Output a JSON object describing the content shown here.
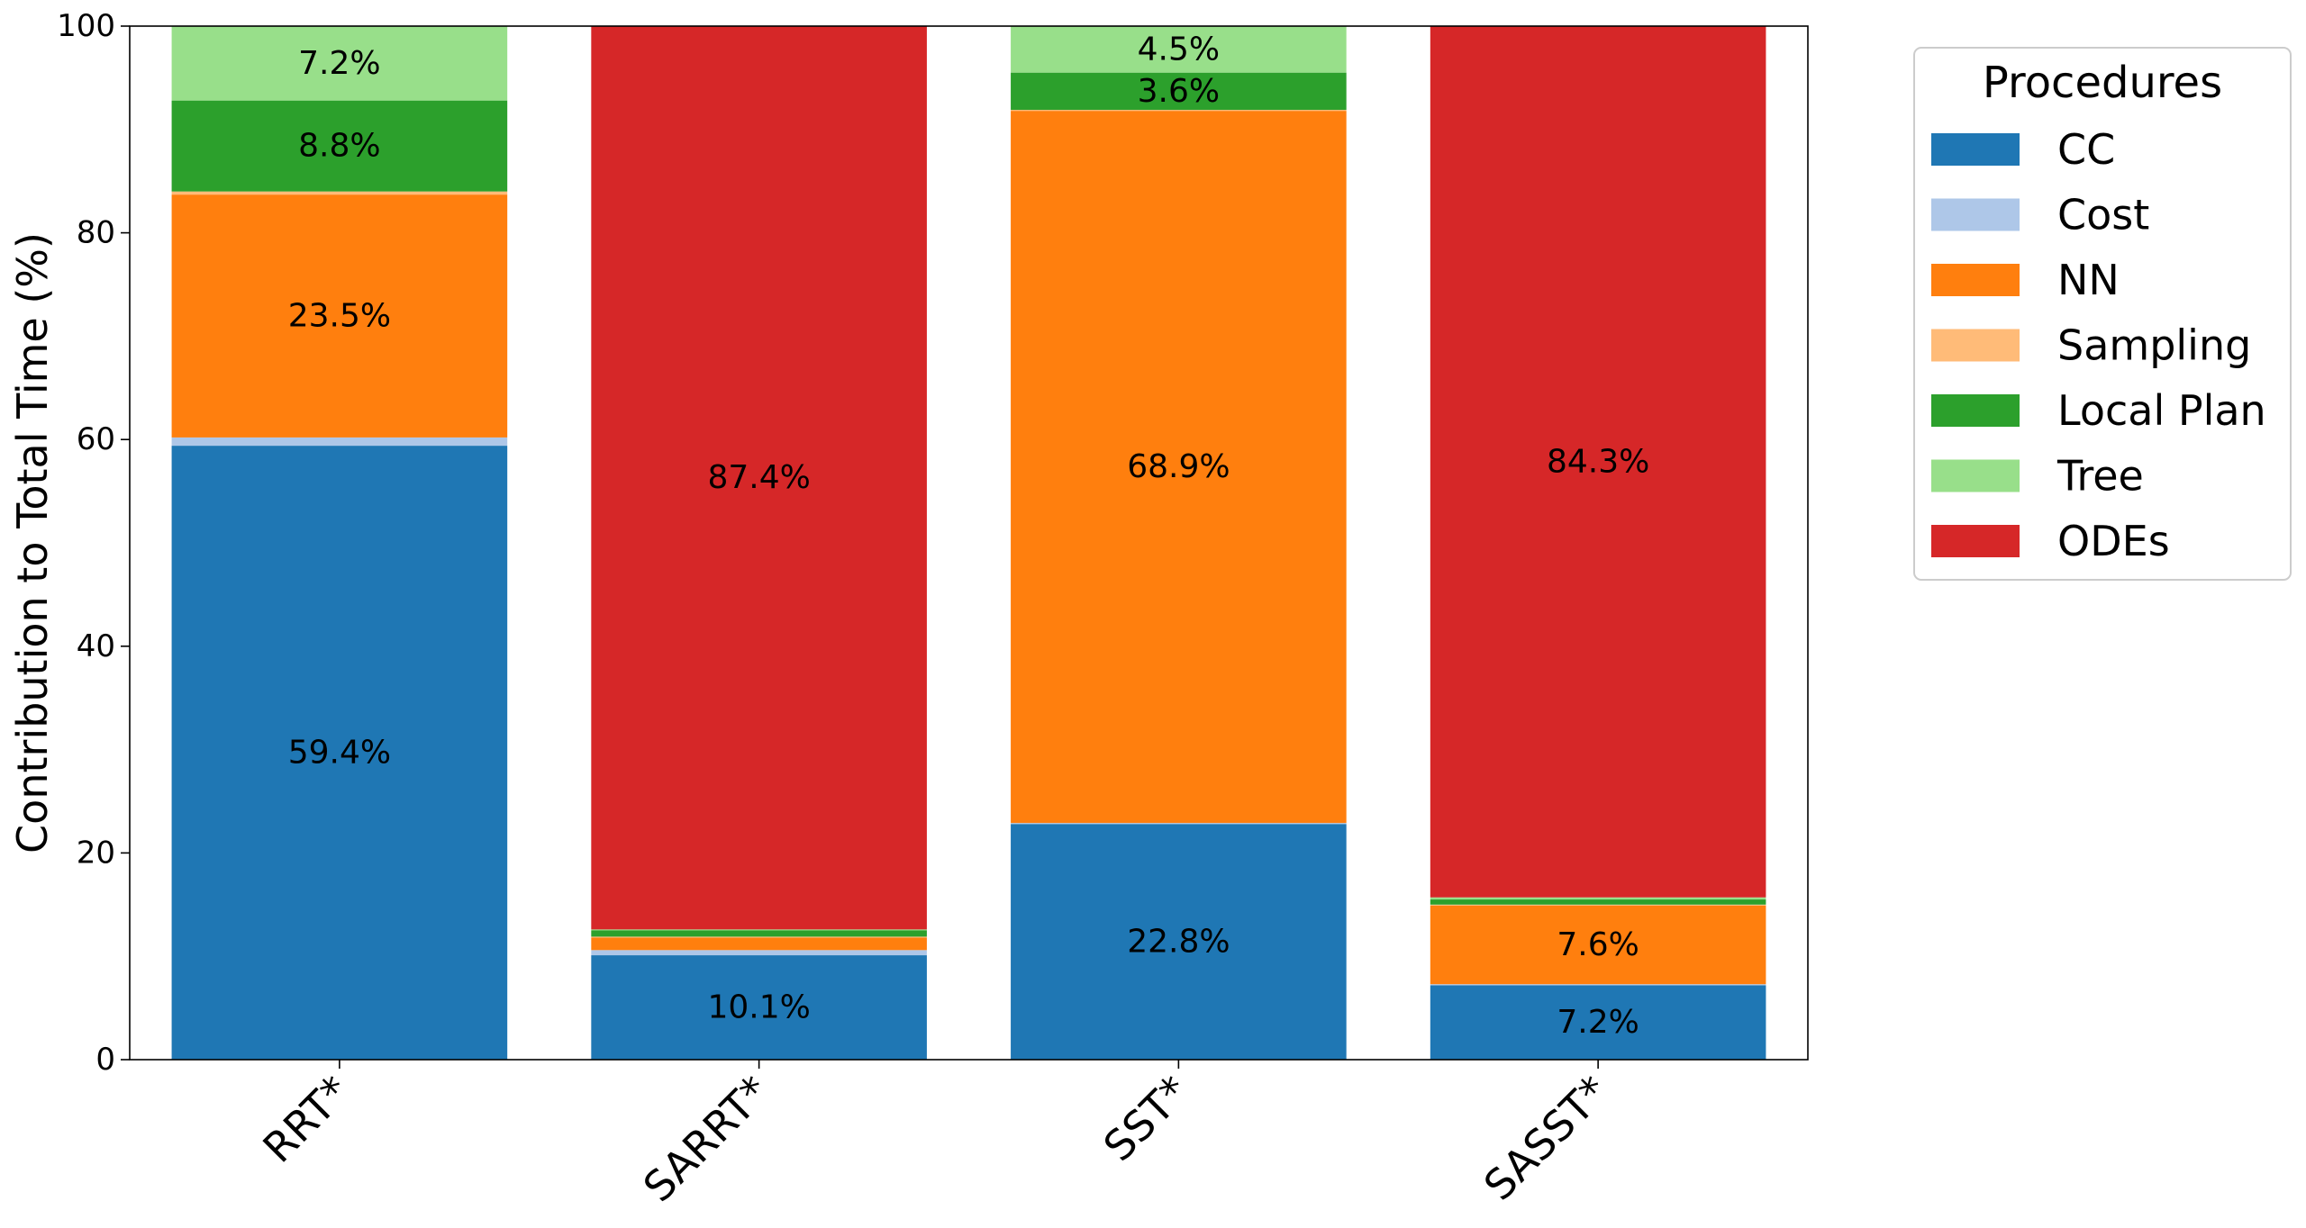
{
  "chart_data": {
    "type": "bar",
    "stacked": true,
    "categories": [
      "RRT*",
      "SARRT*",
      "SST*",
      "SASST*"
    ],
    "ylabel": "Contribution to Total Time (%)",
    "xlabel": "",
    "ylim": [
      0,
      100
    ],
    "yticks": [
      "0",
      "20",
      "40",
      "60",
      "80",
      "100"
    ],
    "grid": false,
    "legend": {
      "title": "Procedures",
      "placement": "outside-top-right"
    },
    "series": [
      {
        "name": "CC",
        "color": "#1f77b4",
        "values": [
          59.4,
          10.1,
          22.8,
          7.2
        ],
        "labels": [
          "59.4%",
          "10.1%",
          "22.8%",
          "7.2%"
        ]
      },
      {
        "name": "Cost",
        "color": "#aec7e8",
        "values": [
          0.8,
          0.5,
          0.1,
          0.1
        ],
        "labels": [
          "",
          "",
          "",
          ""
        ]
      },
      {
        "name": "NN",
        "color": "#ff7f0e",
        "values": [
          23.5,
          1.2,
          68.9,
          7.6
        ],
        "labels": [
          "23.5%",
          "",
          "68.9%",
          "7.6%"
        ]
      },
      {
        "name": "Sampling",
        "color": "#ffbb78",
        "values": [
          0.3,
          0.1,
          0.1,
          0.1
        ],
        "labels": [
          "",
          "",
          "",
          ""
        ]
      },
      {
        "name": "Local Plan",
        "color": "#2ca02c",
        "values": [
          8.8,
          0.6,
          3.6,
          0.5
        ],
        "labels": [
          "8.8%",
          "",
          "3.6%",
          ""
        ]
      },
      {
        "name": "Tree",
        "color": "#98df8a",
        "values": [
          7.2,
          0.1,
          4.5,
          0.2
        ],
        "labels": [
          "7.2%",
          "",
          "4.5%",
          ""
        ]
      },
      {
        "name": "ODEs",
        "color": "#d62728",
        "values": [
          0.0,
          87.4,
          0.0,
          84.3
        ],
        "labels": [
          "",
          "87.4%",
          "",
          "84.3%"
        ]
      }
    ]
  }
}
